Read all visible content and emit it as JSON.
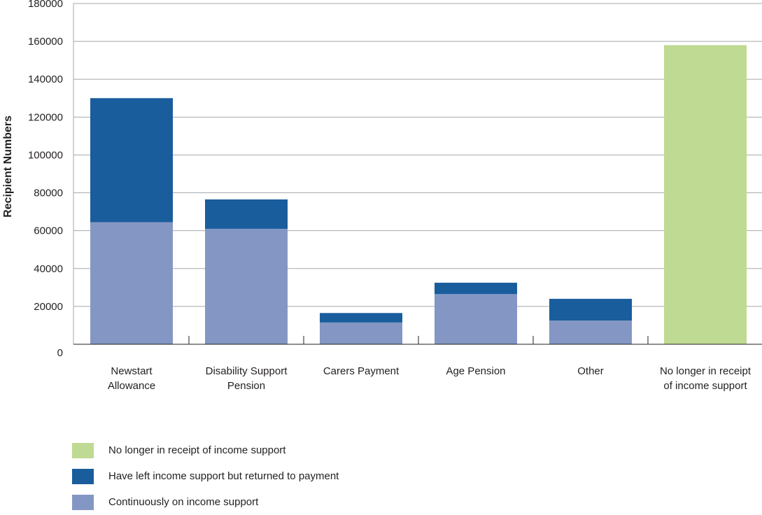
{
  "chart_data": {
    "type": "bar",
    "stacked": true,
    "title": "",
    "xlabel": "",
    "ylabel": "Recipient Numbers",
    "ylim": [
      0,
      180000
    ],
    "yticks": [
      0,
      20000,
      40000,
      60000,
      80000,
      100000,
      120000,
      140000,
      160000,
      180000
    ],
    "grid": true,
    "legend_position": "bottom-left",
    "categories": [
      [
        "Newstart",
        "Allowance"
      ],
      [
        "Disability Support",
        "Pension"
      ],
      [
        "Carers Payment"
      ],
      [
        "Age Pension"
      ],
      [
        "Other"
      ],
      [
        "No longer in receipt",
        "of income support"
      ]
    ],
    "series": [
      {
        "name": "Continuously on income support",
        "color": "#8497c4",
        "values": [
          64500,
          61000,
          11500,
          26500,
          12500,
          0
        ]
      },
      {
        "name": "Have left income support but returned to payment",
        "color": "#195d9d",
        "values": [
          65500,
          15500,
          5000,
          6000,
          11500,
          0
        ]
      },
      {
        "name": "No longer in receipt of income support",
        "color": "#bfda92",
        "values": [
          0,
          0,
          0,
          0,
          0,
          158000
        ]
      }
    ],
    "legend_order": [
      2,
      1,
      0
    ]
  }
}
